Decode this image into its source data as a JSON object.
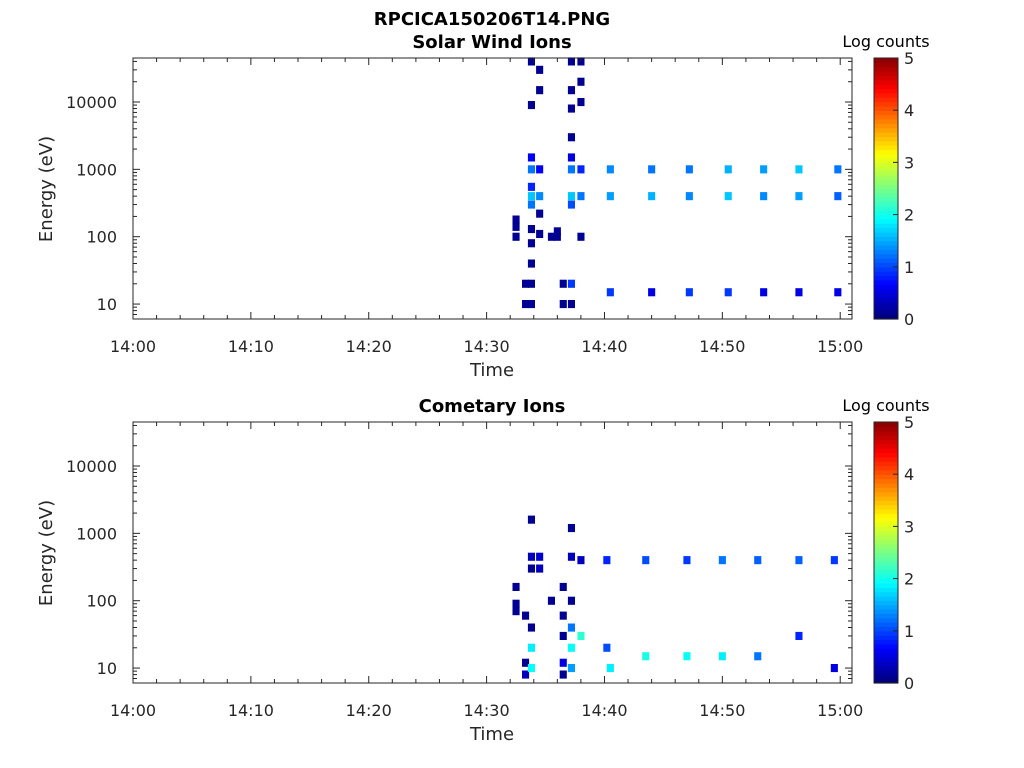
{
  "figure": {
    "title": "RPCICA150206T14.PNG"
  },
  "palette": {
    "jet": [
      "#00007f",
      "#0000ff",
      "#007fff",
      "#00ffff",
      "#7fff7f",
      "#ffff00",
      "#ff7f00",
      "#ff0000",
      "#7f0000"
    ],
    "axis": "#262626",
    "background": "#ffffff"
  },
  "chart_data": [
    {
      "type": "heatmap",
      "title": "Solar Wind Ions",
      "xlabel": "Time",
      "ylabel": "Energy (eV)",
      "yscale": "log",
      "ylim": [
        6,
        45000
      ],
      "xlim": [
        "14:00",
        "15:01"
      ],
      "xticks": [
        "14:00",
        "14:10",
        "14:20",
        "14:30",
        "14:40",
        "14:50",
        "15:00"
      ],
      "yticks": [
        10,
        100,
        1000,
        10000
      ],
      "ytick_labels": [
        "10",
        "100",
        "1000",
        "10000"
      ],
      "colorbar": {
        "label": "Log counts",
        "range": [
          0,
          5
        ],
        "ticks": [
          "0",
          "1",
          "2",
          "3",
          "4",
          "5"
        ]
      },
      "grid": false,
      "cells": [
        {
          "t": "14:32.5",
          "e": 180,
          "v": 0.1
        },
        {
          "t": "14:32.5",
          "e": 140,
          "v": 0.1
        },
        {
          "t": "14:32.5",
          "e": 100,
          "v": 0.1
        },
        {
          "t": "14:33.3",
          "e": 20,
          "v": 0.1
        },
        {
          "t": "14:33.3",
          "e": 10,
          "v": 0.1
        },
        {
          "t": "14:33.8",
          "e": 40000,
          "v": 0.1
        },
        {
          "t": "14:33.8",
          "e": 9000,
          "v": 0.1
        },
        {
          "t": "14:33.8",
          "e": 1500,
          "v": 0.6
        },
        {
          "t": "14:33.8",
          "e": 1000,
          "v": 1.2
        },
        {
          "t": "14:33.8",
          "e": 550,
          "v": 0.8
        },
        {
          "t": "14:33.8",
          "e": 400,
          "v": 1.6
        },
        {
          "t": "14:33.8",
          "e": 300,
          "v": 1.2
        },
        {
          "t": "14:33.8",
          "e": 130,
          "v": 0.1
        },
        {
          "t": "14:33.8",
          "e": 80,
          "v": 0.1
        },
        {
          "t": "14:33.8",
          "e": 40,
          "v": 0.1
        },
        {
          "t": "14:33.8",
          "e": 20,
          "v": 0.1
        },
        {
          "t": "14:33.8",
          "e": 10,
          "v": 0.1
        },
        {
          "t": "14:34.5",
          "e": 30000,
          "v": 0.1
        },
        {
          "t": "14:34.5",
          "e": 15000,
          "v": 0.1
        },
        {
          "t": "14:34.5",
          "e": 1000,
          "v": 0.6
        },
        {
          "t": "14:34.5",
          "e": 400,
          "v": 1.3
        },
        {
          "t": "14:34.5",
          "e": 220,
          "v": 0.1
        },
        {
          "t": "14:34.5",
          "e": 110,
          "v": 0.1
        },
        {
          "t": "14:35.5",
          "e": 100,
          "v": 0.1
        },
        {
          "t": "14:36.0",
          "e": 120,
          "v": 0.1
        },
        {
          "t": "14:36.0",
          "e": 100,
          "v": 0.1
        },
        {
          "t": "14:36.5",
          "e": 20,
          "v": 0.1
        },
        {
          "t": "14:36.5",
          "e": 10,
          "v": 0.1
        },
        {
          "t": "14:37.2",
          "e": 40000,
          "v": 0.1
        },
        {
          "t": "14:37.2",
          "e": 15000,
          "v": 0.1
        },
        {
          "t": "14:37.2",
          "e": 8000,
          "v": 0.1
        },
        {
          "t": "14:37.2",
          "e": 3000,
          "v": 0.1
        },
        {
          "t": "14:37.2",
          "e": 1500,
          "v": 0.5
        },
        {
          "t": "14:37.2",
          "e": 1000,
          "v": 1.2
        },
        {
          "t": "14:37.2",
          "e": 400,
          "v": 1.6
        },
        {
          "t": "14:37.2",
          "e": 300,
          "v": 1.0
        },
        {
          "t": "14:37.2",
          "e": 20,
          "v": 0.9
        },
        {
          "t": "14:37.2",
          "e": 10,
          "v": 0.1
        },
        {
          "t": "14:38.0",
          "e": 40000,
          "v": 0.1
        },
        {
          "t": "14:38.0",
          "e": 20000,
          "v": 0.1
        },
        {
          "t": "14:38.0",
          "e": 10000,
          "v": 0.1
        },
        {
          "t": "14:38.0",
          "e": 1000,
          "v": 0.8
        },
        {
          "t": "14:38.0",
          "e": 400,
          "v": 1.2
        },
        {
          "t": "14:38.0",
          "e": 100,
          "v": 0.1
        },
        {
          "t": "14:40.5",
          "e": 1000,
          "v": 1.3
        },
        {
          "t": "14:40.5",
          "e": 400,
          "v": 1.4
        },
        {
          "t": "14:40.5",
          "e": 15,
          "v": 0.9
        },
        {
          "t": "14:44.0",
          "e": 1000,
          "v": 1.2
        },
        {
          "t": "14:44.0",
          "e": 400,
          "v": 1.5
        },
        {
          "t": "14:44.0",
          "e": 15,
          "v": 0.5
        },
        {
          "t": "14:47.2",
          "e": 1000,
          "v": 1.2
        },
        {
          "t": "14:47.2",
          "e": 400,
          "v": 1.3
        },
        {
          "t": "14:47.2",
          "e": 15,
          "v": 0.9
        },
        {
          "t": "14:50.5",
          "e": 1000,
          "v": 1.5
        },
        {
          "t": "14:50.5",
          "e": 400,
          "v": 1.6
        },
        {
          "t": "14:50.5",
          "e": 15,
          "v": 0.9
        },
        {
          "t": "14:53.5",
          "e": 1000,
          "v": 1.4
        },
        {
          "t": "14:53.5",
          "e": 400,
          "v": 1.3
        },
        {
          "t": "14:53.5",
          "e": 15,
          "v": 0.5
        },
        {
          "t": "14:56.5",
          "e": 1000,
          "v": 1.6
        },
        {
          "t": "14:56.5",
          "e": 400,
          "v": 1.4
        },
        {
          "t": "14:56.5",
          "e": 15,
          "v": 0.5
        },
        {
          "t": "14:59.8",
          "e": 1000,
          "v": 1.2
        },
        {
          "t": "14:59.8",
          "e": 400,
          "v": 1.1
        },
        {
          "t": "14:59.8",
          "e": 15,
          "v": 0.5
        }
      ]
    },
    {
      "type": "heatmap",
      "title": "Cometary Ions",
      "xlabel": "Time",
      "ylabel": "Energy (eV)",
      "yscale": "log",
      "ylim": [
        6,
        45000
      ],
      "xlim": [
        "14:00",
        "15:01"
      ],
      "xticks": [
        "14:00",
        "14:10",
        "14:20",
        "14:30",
        "14:40",
        "14:50",
        "15:00"
      ],
      "yticks": [
        10,
        100,
        1000,
        10000
      ],
      "ytick_labels": [
        "10",
        "100",
        "1000",
        "10000"
      ],
      "colorbar": {
        "label": "Log counts",
        "range": [
          0,
          5
        ],
        "ticks": [
          "0",
          "1",
          "2",
          "3",
          "4",
          "5"
        ]
      },
      "grid": false,
      "cells": [
        {
          "t": "14:32.5",
          "e": 160,
          "v": 0.1
        },
        {
          "t": "14:32.5",
          "e": 90,
          "v": 0.1
        },
        {
          "t": "14:32.5",
          "e": 70,
          "v": 0.1
        },
        {
          "t": "14:33.3",
          "e": 60,
          "v": 0.1
        },
        {
          "t": "14:33.3",
          "e": 12,
          "v": 0.1
        },
        {
          "t": "14:33.3",
          "e": 8,
          "v": 0.3
        },
        {
          "t": "14:33.8",
          "e": 1600,
          "v": 0.1
        },
        {
          "t": "14:33.8",
          "e": 450,
          "v": 0.3
        },
        {
          "t": "14:33.8",
          "e": 300,
          "v": 0.1
        },
        {
          "t": "14:33.8",
          "e": 40,
          "v": 0.1
        },
        {
          "t": "14:33.8",
          "e": 20,
          "v": 1.8
        },
        {
          "t": "14:33.8",
          "e": 10,
          "v": 1.9
        },
        {
          "t": "14:34.5",
          "e": 450,
          "v": 0.4
        },
        {
          "t": "14:34.5",
          "e": 300,
          "v": 0.3
        },
        {
          "t": "14:35.5",
          "e": 100,
          "v": 0.1
        },
        {
          "t": "14:36.5",
          "e": 160,
          "v": 0.1
        },
        {
          "t": "14:36.5",
          "e": 60,
          "v": 0.1
        },
        {
          "t": "14:36.5",
          "e": 30,
          "v": 0.1
        },
        {
          "t": "14:36.5",
          "e": 12,
          "v": 0.5
        },
        {
          "t": "14:36.5",
          "e": 8,
          "v": 0.1
        },
        {
          "t": "14:37.2",
          "e": 1200,
          "v": 0.1
        },
        {
          "t": "14:37.2",
          "e": 450,
          "v": 0.3
        },
        {
          "t": "14:37.2",
          "e": 100,
          "v": 0.1
        },
        {
          "t": "14:37.2",
          "e": 40,
          "v": 1.2
        },
        {
          "t": "14:37.2",
          "e": 20,
          "v": 1.9
        },
        {
          "t": "14:37.2",
          "e": 10,
          "v": 1.4
        },
        {
          "t": "14:38.0",
          "e": 400,
          "v": 0.3
        },
        {
          "t": "14:38.0",
          "e": 30,
          "v": 2.1
        },
        {
          "t": "14:40.2",
          "e": 400,
          "v": 0.8
        },
        {
          "t": "14:40.2",
          "e": 20,
          "v": 1.0
        },
        {
          "t": "14:40.5",
          "e": 10,
          "v": 1.8
        },
        {
          "t": "14:43.5",
          "e": 400,
          "v": 1.0
        },
        {
          "t": "14:43.5",
          "e": 15,
          "v": 2.0
        },
        {
          "t": "14:47.0",
          "e": 400,
          "v": 0.9
        },
        {
          "t": "14:47.0",
          "e": 15,
          "v": 1.9
        },
        {
          "t": "14:50.0",
          "e": 400,
          "v": 1.2
        },
        {
          "t": "14:50.0",
          "e": 15,
          "v": 1.8
        },
        {
          "t": "14:53.0",
          "e": 400,
          "v": 1.1
        },
        {
          "t": "14:53.0",
          "e": 15,
          "v": 1.2
        },
        {
          "t": "14:56.5",
          "e": 400,
          "v": 1.1
        },
        {
          "t": "14:56.5",
          "e": 30,
          "v": 0.8
        },
        {
          "t": "14:59.5",
          "e": 400,
          "v": 0.9
        },
        {
          "t": "14:59.5",
          "e": 10,
          "v": 0.5
        }
      ]
    }
  ]
}
